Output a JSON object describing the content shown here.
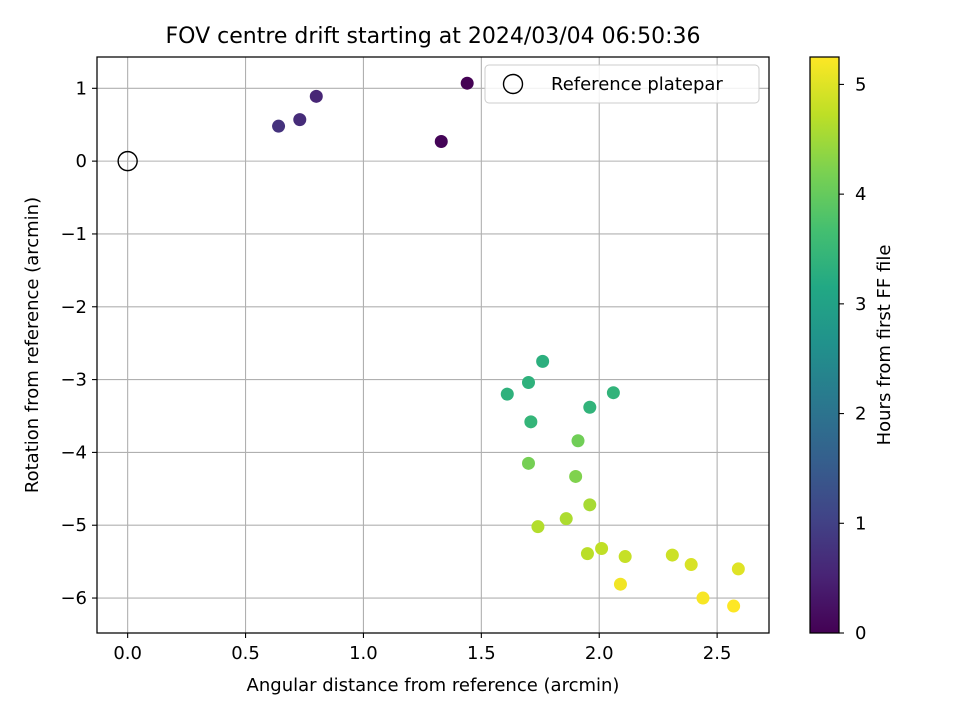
{
  "chart_data": {
    "type": "scatter",
    "title": "FOV centre drift starting at 2024/03/04 06:50:36",
    "xlabel": "Angular distance from reference (arcmin)",
    "ylabel": "Rotation from reference (arcmin)",
    "xlim": [
      -0.13,
      2.72
    ],
    "ylim": [
      -6.48,
      1.43
    ],
    "xticks": [
      0.0,
      0.5,
      1.0,
      1.5,
      2.0,
      2.5
    ],
    "xtick_labels": [
      "0.0",
      "0.5",
      "1.0",
      "1.5",
      "2.0",
      "2.5"
    ],
    "yticks": [
      1,
      0,
      -1,
      -2,
      -3,
      -4,
      -5,
      -6
    ],
    "ytick_labels": [
      "1",
      "0",
      "−1",
      "−2",
      "−3",
      "−4",
      "−5",
      "−6"
    ],
    "grid": true,
    "legend": {
      "placement": "top-right",
      "label": "Reference platepar"
    },
    "reference_point": {
      "x": 0.0,
      "y": 0.0,
      "marker": "open-circle"
    },
    "colorbar": {
      "label": "Hours from first FF file",
      "range": [
        0,
        5.25
      ],
      "ticks": [
        0,
        1,
        2,
        3,
        4,
        5
      ],
      "tick_labels": [
        "0",
        "1",
        "2",
        "3",
        "4",
        "5"
      ],
      "colormap": "viridis"
    },
    "points": [
      {
        "x": 1.44,
        "y": 1.07,
        "c": 0.0
      },
      {
        "x": 1.33,
        "y": 0.27,
        "c": 0.05
      },
      {
        "x": 0.8,
        "y": 0.89,
        "c": 0.55
      },
      {
        "x": 0.73,
        "y": 0.57,
        "c": 0.65
      },
      {
        "x": 0.64,
        "y": 0.48,
        "c": 0.75
      },
      {
        "x": 1.76,
        "y": -2.75,
        "c": 3.3
      },
      {
        "x": 1.61,
        "y": -3.2,
        "c": 3.35
      },
      {
        "x": 1.7,
        "y": -3.04,
        "c": 3.35
      },
      {
        "x": 1.96,
        "y": -3.38,
        "c": 3.4
      },
      {
        "x": 2.06,
        "y": -3.18,
        "c": 3.4
      },
      {
        "x": 1.71,
        "y": -3.58,
        "c": 3.45
      },
      {
        "x": 1.91,
        "y": -3.84,
        "c": 4.1
      },
      {
        "x": 1.7,
        "y": -4.15,
        "c": 4.15
      },
      {
        "x": 1.9,
        "y": -4.33,
        "c": 4.25
      },
      {
        "x": 1.96,
        "y": -4.72,
        "c": 4.55
      },
      {
        "x": 1.86,
        "y": -4.91,
        "c": 4.6
      },
      {
        "x": 1.74,
        "y": -5.02,
        "c": 4.65
      },
      {
        "x": 1.95,
        "y": -5.39,
        "c": 4.7
      },
      {
        "x": 2.01,
        "y": -5.32,
        "c": 4.75
      },
      {
        "x": 2.11,
        "y": -5.43,
        "c": 4.8
      },
      {
        "x": 2.31,
        "y": -5.41,
        "c": 4.85
      },
      {
        "x": 2.39,
        "y": -5.54,
        "c": 4.95
      },
      {
        "x": 2.59,
        "y": -5.6,
        "c": 5.0
      },
      {
        "x": 2.09,
        "y": -5.81,
        "c": 5.15
      },
      {
        "x": 2.44,
        "y": -6.0,
        "c": 5.2
      },
      {
        "x": 2.57,
        "y": -6.11,
        "c": 5.25
      }
    ]
  }
}
